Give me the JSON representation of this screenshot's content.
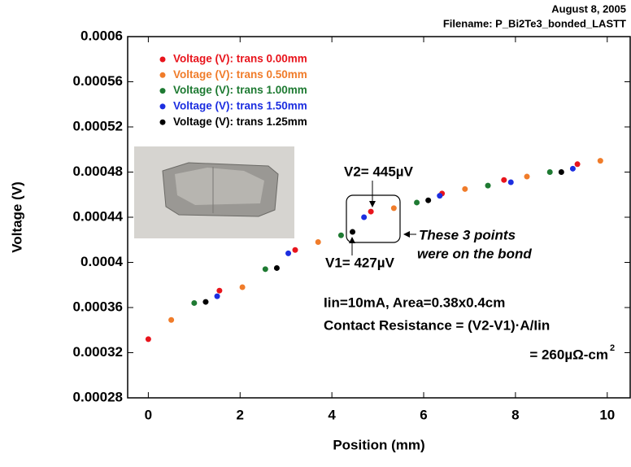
{
  "chart_data": {
    "type": "scatter",
    "header": [
      "August 8, 2005",
      "Filename: P_Bi2Te3_bonded_LASTT"
    ],
    "x_label": "Position (mm)",
    "y_label": "Voltage (V)",
    "xlim": [
      -0.45,
      10.5
    ],
    "xticks": [
      0,
      2,
      4,
      6,
      8,
      10
    ],
    "ylim": [
      0.00028,
      0.0006
    ],
    "yticks": [
      0.00028,
      0.00032,
      0.00036,
      0.0004,
      0.00044,
      0.00048,
      0.00052,
      0.00056,
      0.0006
    ],
    "legend": "upper left",
    "series": [
      {
        "name": "Voltage (V): trans 0.00mm",
        "color": "#e8141c",
        "x": [
          0,
          1.55,
          3.2,
          4.85,
          6.4,
          7.75,
          9.35
        ],
        "values": [
          0.000332,
          0.000375,
          0.000411,
          0.000445,
          0.000461,
          0.000473,
          0.000487
        ]
      },
      {
        "name": "Voltage (V): trans 0.50mm",
        "color": "#f07c2a",
        "x": [
          0.5,
          2.05,
          3.7,
          5.35,
          6.9,
          8.25,
          9.85
        ],
        "values": [
          0.000349,
          0.000378,
          0.000418,
          0.000448,
          0.000465,
          0.000476,
          0.00049
        ]
      },
      {
        "name": "Voltage (V): trans 1.00mm",
        "color": "#1e7a32",
        "x": [
          1.0,
          2.55,
          4.2,
          5.85,
          7.4,
          8.75
        ],
        "values": [
          0.000364,
          0.000394,
          0.000424,
          0.000453,
          0.000468,
          0.00048
        ]
      },
      {
        "name": "Voltage (V): trans 1.50mm",
        "color": "#1c2ee0",
        "x": [
          1.5,
          3.05,
          4.7,
          6.35,
          7.9,
          9.25
        ],
        "values": [
          0.00037,
          0.000408,
          0.00044,
          0.000459,
          0.000471,
          0.000483
        ]
      },
      {
        "name": "Voltage (V): trans 1.25mm",
        "color": "#000000",
        "x": [
          1.25,
          2.8,
          4.45,
          6.1,
          9.0
        ],
        "values": [
          0.000365,
          0.000395,
          0.000427,
          0.000455,
          0.00048
        ]
      }
    ],
    "annotations": [
      "V2= 445µV",
      "V1= 427µV",
      "These 3 points",
      "were on the bond",
      "Iin=10mA, Area=0.38x0.4cm",
      "Contact Resistance = (V2-V1)·A/Iin",
      "= 260µΩ-cm",
      "2"
    ]
  }
}
